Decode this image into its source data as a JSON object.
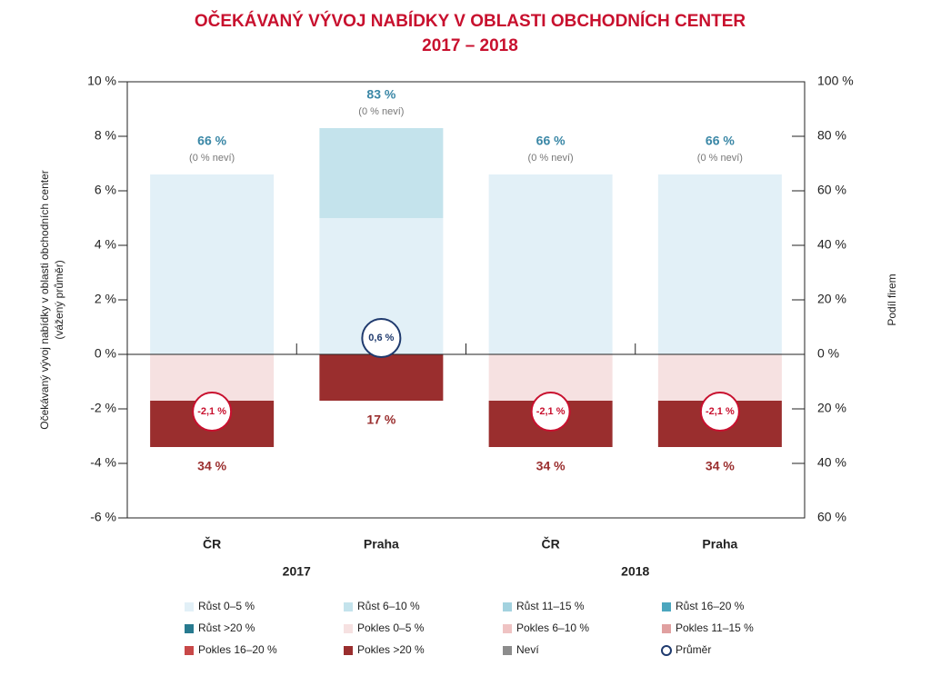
{
  "chart_data": {
    "type": "stacked_bar",
    "title": "OČEKÁVANÝ VÝVOJ NABÍDKY V OBLASTI OBCHODNÍCH CENTER",
    "subtitle": "2017 – 2018",
    "y_label": [
      "Očekávaný vývoj nabídky v oblasti obchodních center",
      "(vážený průměr)"
    ],
    "y2_label": "Podíl firem",
    "categories": [
      "ČR",
      "Praha",
      "ČR",
      "Praha"
    ],
    "groups": [
      {
        "label": "2017",
        "categories": [
          0,
          1
        ]
      },
      {
        "label": "2018",
        "categories": [
          2,
          3
        ]
      }
    ],
    "ylim": [
      -6,
      10
    ],
    "yticks": [
      {
        "value": -6,
        "label": "-6 %"
      },
      {
        "value": -4,
        "label": "-4 %"
      },
      {
        "value": -2,
        "label": "-2 %"
      },
      {
        "value": 0,
        "label": "0 %"
      },
      {
        "value": 2,
        "label": "2 %"
      },
      {
        "value": 4,
        "label": "4 %"
      },
      {
        "value": 6,
        "label": "6 %"
      },
      {
        "value": 8,
        "label": "8 %"
      },
      {
        "value": 10,
        "label": "10 %"
      }
    ],
    "y2lim": [
      -60,
      100
    ],
    "y2ticks": [
      {
        "value": -60,
        "label": "60 %"
      },
      {
        "value": -40,
        "label": "40 %"
      },
      {
        "value": -20,
        "label": "20 %"
      },
      {
        "value": 0,
        "label": "0 %"
      },
      {
        "value": 20,
        "label": "20 %"
      },
      {
        "value": 40,
        "label": "40 %"
      },
      {
        "value": 60,
        "label": "60 %"
      },
      {
        "value": 80,
        "label": "80 %"
      },
      {
        "value": 100,
        "label": "100 %"
      }
    ],
    "series": [
      {
        "name": "Růst 0–5 %",
        "color": "#e2f0f7",
        "axis": "y2",
        "direction": "up",
        "values": [
          66,
          50,
          66,
          66
        ]
      },
      {
        "name": "Růst 6–10 %",
        "color": "#c4e3ec",
        "axis": "y2",
        "direction": "up",
        "values": [
          0,
          33,
          0,
          0
        ]
      },
      {
        "name": "Růst 11–15 %",
        "color": "#a3d2df",
        "axis": "y2",
        "direction": "up",
        "values": [
          0,
          0,
          0,
          0
        ]
      },
      {
        "name": "Růst 16–20 %",
        "color": "#4ba6be",
        "axis": "y2",
        "direction": "up",
        "values": [
          0,
          0,
          0,
          0
        ]
      },
      {
        "name": "Růst >20 %",
        "color": "#277a8f",
        "axis": "y2",
        "direction": "up",
        "values": [
          0,
          0,
          0,
          0
        ]
      },
      {
        "name": "Pokles 0–5 %",
        "color": "#f6e1e1",
        "axis": "y2",
        "direction": "down",
        "values": [
          17,
          0,
          17,
          17
        ]
      },
      {
        "name": "Pokles 6–10 %",
        "color": "#efc3c3",
        "axis": "y2",
        "direction": "down",
        "values": [
          0,
          0,
          0,
          0
        ]
      },
      {
        "name": "Pokles 11–15 %",
        "color": "#e0a0a0",
        "axis": "y2",
        "direction": "down",
        "values": [
          0,
          0,
          0,
          0
        ]
      },
      {
        "name": "Pokles 16–20 %",
        "color": "#c84848",
        "axis": "y2",
        "direction": "down",
        "values": [
          0,
          0,
          0,
          0
        ]
      },
      {
        "name": "Pokles >20 %",
        "color": "#9a2e2e",
        "axis": "y2",
        "direction": "down",
        "values": [
          17,
          17,
          17,
          17
        ]
      },
      {
        "name": "Neví",
        "color": "#8c8c8c",
        "axis": "y2",
        "direction": "up",
        "values": [
          0,
          0,
          0,
          0
        ]
      }
    ],
    "growth_totals": {
      "values": [
        66,
        83,
        66,
        66
      ],
      "value_labels": [
        "66 %",
        "83 %",
        "66 %",
        "66 %"
      ],
      "color": "#3a87a6"
    },
    "unknown_notes": [
      "(0 % neví)",
      "(0 % neví)",
      "(0 % neví)",
      "(0 % neví)"
    ],
    "decline_totals": {
      "values": [
        34,
        17,
        34,
        34
      ],
      "value_labels": [
        "34 %",
        "17 %",
        "34 %",
        "34 %"
      ],
      "color": "#9a2e2e"
    },
    "average": {
      "name": "Průměr",
      "values": [
        -2.1,
        0.6,
        -2.1,
        -2.1
      ],
      "value_labels": [
        "-2,1 %",
        "0,6 %",
        "-2,1 %",
        "-2,1 %"
      ],
      "color": "#1f3a6e",
      "negative_color": "#c8102e"
    },
    "title_color": "#c8102e"
  }
}
